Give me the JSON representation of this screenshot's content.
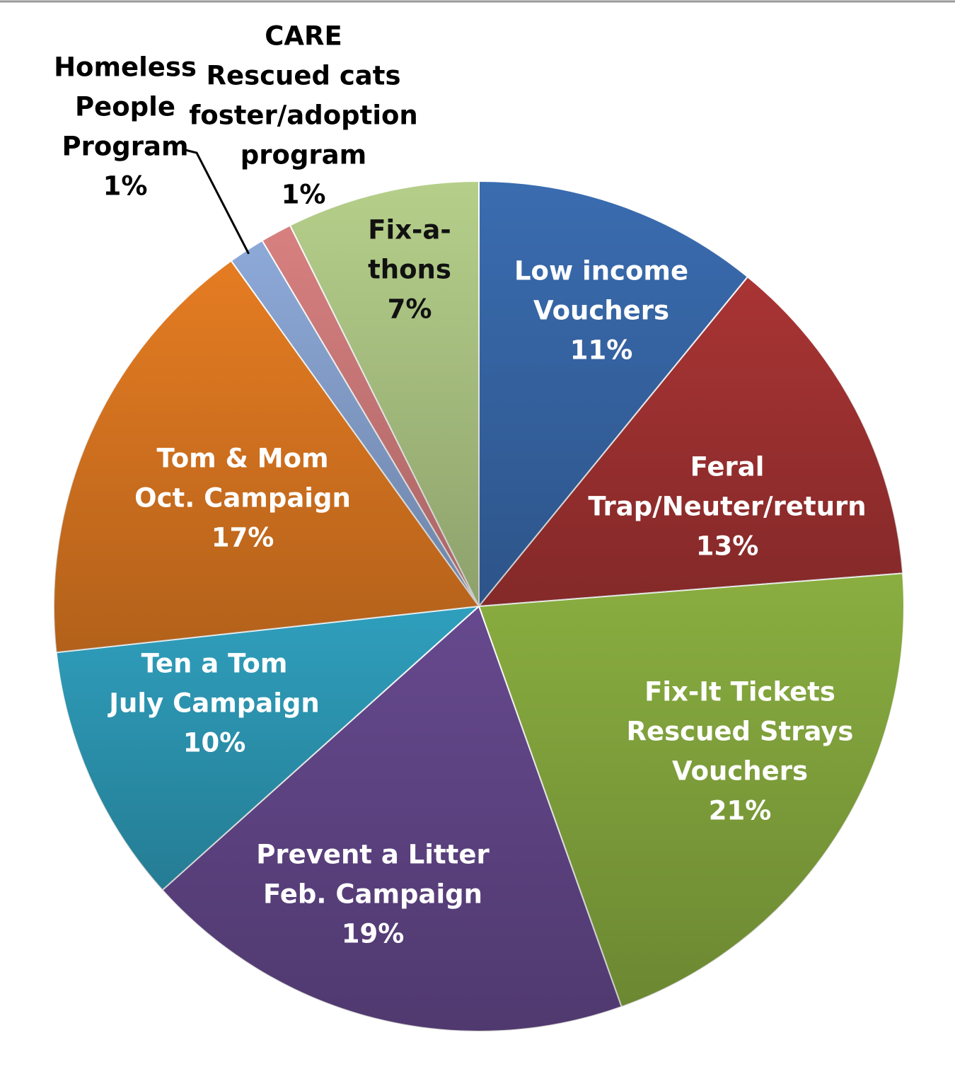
{
  "chart_data": {
    "type": "pie",
    "title": "",
    "slices": [
      {
        "lines": [
          "Low income",
          "Vouchers"
        ],
        "pct": "11%",
        "value": 11,
        "color": "#3a6cb0",
        "label_color": "#ffffff",
        "outside": false
      },
      {
        "lines": [
          "Feral",
          "Trap/Neuter/return"
        ],
        "pct": "13%",
        "value": 13,
        "color": "#a93434",
        "label_color": "#ffffff",
        "outside": false
      },
      {
        "lines": [
          "Fix-It Tickets",
          "Rescued Strays",
          "Vouchers"
        ],
        "pct": "21%",
        "value": 21,
        "color": "#8aae40",
        "label_color": "#ffffff",
        "outside": false
      },
      {
        "lines": [
          "Prevent a Litter",
          "Feb. Campaign"
        ],
        "pct": "19%",
        "value": 19,
        "color": "#66498e",
        "label_color": "#ffffff",
        "outside": false
      },
      {
        "lines": [
          "Ten a Tom",
          "July Campaign"
        ],
        "pct": "10%",
        "value": 10,
        "color": "#2f9fbd",
        "label_color": "#ffffff",
        "outside": false
      },
      {
        "lines": [
          "Tom & Mom",
          "Oct. Campaign"
        ],
        "pct": "17%",
        "value": 17,
        "color": "#e57c22",
        "label_color": "#ffffff",
        "outside": false
      },
      {
        "lines": [
          "Homeless",
          "People",
          "Program"
        ],
        "pct": "1%",
        "value": 1.4,
        "color": "#8da9d8",
        "label_color": "#000000",
        "outside": true
      },
      {
        "lines": [
          "CARE",
          "Rescued cats",
          "foster/adoption",
          "program"
        ],
        "pct": "1%",
        "value": 1.2,
        "color": "#d88080",
        "label_color": "#000000",
        "outside": true
      },
      {
        "lines": [
          "Fix-a-",
          "thons"
        ],
        "pct": "7%",
        "value": 7.4,
        "color": "#b5cf8a",
        "label_color": "#111111",
        "outside": false
      }
    ]
  }
}
